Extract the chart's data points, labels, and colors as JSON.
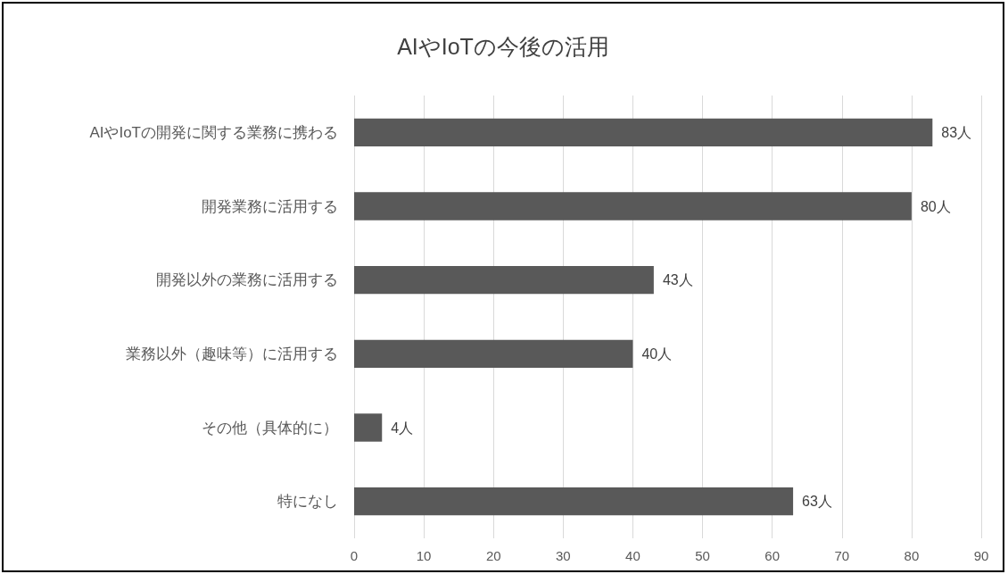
{
  "chart_data": {
    "type": "bar",
    "orientation": "horizontal",
    "title": "AIやIoTの今後の活用",
    "categories": [
      "AIやIoTの開発に関する業務に携わる",
      "開発業務に活用する",
      "開発以外の業務に活用する",
      "業務以外（趣味等）に活用する",
      "その他（具体的に）",
      "特になし"
    ],
    "values": [
      83,
      80,
      43,
      40,
      4,
      63
    ],
    "value_labels": [
      "83人",
      "80人",
      "43人",
      "40人",
      "4人",
      "63人"
    ],
    "color": "#595959",
    "xlim": [
      0,
      90
    ],
    "xticks": [
      0,
      10,
      20,
      30,
      40,
      50,
      60,
      70,
      80,
      90
    ],
    "grid": "x"
  }
}
